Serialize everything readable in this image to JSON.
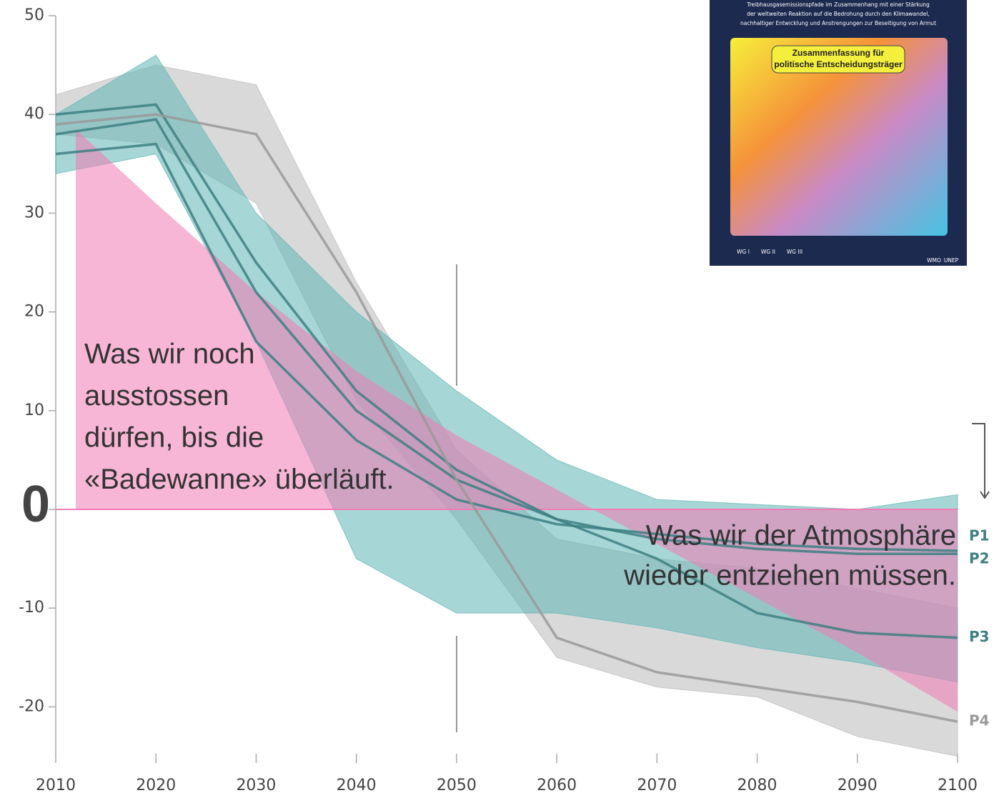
{
  "chart_data": {
    "type": "line",
    "x": [
      2010,
      2020,
      2030,
      2040,
      2050,
      2060,
      2070,
      2080,
      2090,
      2100
    ],
    "xlim": [
      2010,
      2100
    ],
    "ylim": [
      -25,
      50
    ],
    "xticks": [
      2010,
      2020,
      2030,
      2040,
      2050,
      2060,
      2070,
      2080,
      2090,
      2100
    ],
    "yticks": [
      -20,
      -10,
      0,
      10,
      20,
      30,
      40,
      50
    ],
    "zero_label_color": "#0b4f8c",
    "bands": [
      {
        "color": "#b9b9b9",
        "lower": [
          38,
          37,
          31,
          11,
          -1,
          -15,
          -18,
          -19,
          -23,
          -25
        ],
        "upper": [
          42,
          45,
          43,
          23,
          6,
          -3,
          -5,
          -6,
          -8,
          -10
        ]
      },
      {
        "color": "#5fb5b5",
        "lower": [
          34,
          36,
          17,
          -5,
          -10.5,
          -10.5,
          -12,
          -14,
          -15.5,
          -17.5
        ],
        "upper": [
          40,
          46,
          30,
          20,
          12,
          5,
          1,
          0.5,
          0,
          1.5
        ]
      }
    ],
    "budget": {
      "color": "#f27ab4",
      "x": [
        2012,
        2020,
        2030,
        2040,
        2050,
        2060,
        2070,
        2080,
        2090,
        2100
      ],
      "values": [
        38.5,
        31,
        22,
        14,
        7.5,
        2,
        -3.5,
        -9,
        -14.5,
        -20.5
      ]
    },
    "series": [
      {
        "name": "P1",
        "color": "#3d7f82",
        "values": [
          36,
          37,
          17,
          7,
          1,
          -1.5,
          -2.5,
          -3.5,
          -4,
          -4.2
        ]
      },
      {
        "name": "P2",
        "color": "#3d7f82",
        "values": [
          38,
          39.5,
          22,
          10,
          3,
          -1,
          -3,
          -4,
          -4.5,
          -4.5
        ]
      },
      {
        "name": "P3",
        "color": "#3d7f82",
        "values": [
          40,
          41,
          25,
          12,
          4,
          -1,
          -5,
          -10.5,
          -12.5,
          -13
        ]
      },
      {
        "name": "P4",
        "color": "#999999",
        "values": [
          39,
          40,
          38,
          22,
          3,
          -13,
          -16.5,
          -18,
          -19.5,
          -21.5
        ]
      }
    ],
    "annotations": [
      {
        "lines": [
          "Was wir noch",
          "ausstossen",
          "dürfen, bis die",
          "«Badewanne» überläuft."
        ]
      },
      {
        "lines": [
          "Was wir der Atmosphäre",
          "wieder entziehen müssen."
        ]
      }
    ],
    "inset": {
      "subtitle_lines": [
        "Treibhausgasemissionspfade im Zusammenhang mit einer Stärkung",
        "der weltweiten Reaktion auf die Bedrohung durch den Klimawandel,",
        "nachhaltiger Entwicklung und Anstrengungen zur Beseitigung von Armut"
      ],
      "box_lines": [
        "Zusammenfassung für",
        "politische Entscheidungsträger"
      ],
      "tags": [
        "WG I",
        "WG II",
        "WG III"
      ],
      "logos": [
        "WMO",
        "UNEP"
      ]
    }
  }
}
